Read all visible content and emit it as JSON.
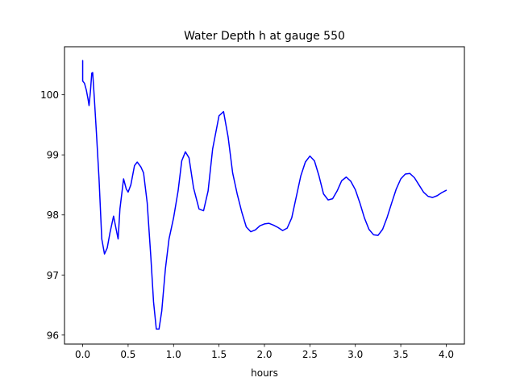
{
  "chart_data": {
    "type": "line",
    "title": "Water Depth h at gauge 550",
    "xlabel": "hours",
    "ylabel": "",
    "xlim": [
      -0.2,
      4.2
    ],
    "ylim": [
      95.85,
      100.8
    ],
    "xticks": [
      0.0,
      0.5,
      1.0,
      1.5,
      2.0,
      2.5,
      3.0,
      3.5,
      4.0
    ],
    "xtick_labels": [
      "0.0",
      "0.5",
      "1.0",
      "1.5",
      "2.0",
      "2.5",
      "3.0",
      "3.5",
      "4.0"
    ],
    "yticks": [
      96,
      97,
      98,
      99,
      100
    ],
    "ytick_labels": [
      "96",
      "97",
      "98",
      "99",
      "100"
    ],
    "grid": false,
    "series": [
      {
        "name": "",
        "color": "#0000ff",
        "points": [
          [
            0.0,
            100.57
          ],
          [
            0.0,
            100.23
          ],
          [
            0.02,
            100.19
          ],
          [
            0.04,
            100.08
          ],
          [
            0.06,
            99.92
          ],
          [
            0.07,
            99.82
          ],
          [
            0.085,
            100.05
          ],
          [
            0.1,
            100.36
          ],
          [
            0.11,
            100.37
          ],
          [
            0.13,
            99.9
          ],
          [
            0.15,
            99.4
          ],
          [
            0.18,
            98.6
          ],
          [
            0.21,
            97.6
          ],
          [
            0.24,
            97.35
          ],
          [
            0.27,
            97.45
          ],
          [
            0.3,
            97.7
          ],
          [
            0.34,
            97.98
          ],
          [
            0.37,
            97.75
          ],
          [
            0.39,
            97.6
          ],
          [
            0.41,
            98.1
          ],
          [
            0.45,
            98.6
          ],
          [
            0.48,
            98.43
          ],
          [
            0.5,
            98.38
          ],
          [
            0.53,
            98.5
          ],
          [
            0.57,
            98.82
          ],
          [
            0.6,
            98.88
          ],
          [
            0.64,
            98.8
          ],
          [
            0.67,
            98.7
          ],
          [
            0.71,
            98.2
          ],
          [
            0.75,
            97.3
          ],
          [
            0.78,
            96.55
          ],
          [
            0.81,
            96.1
          ],
          [
            0.84,
            96.1
          ],
          [
            0.87,
            96.4
          ],
          [
            0.91,
            97.1
          ],
          [
            0.95,
            97.6
          ],
          [
            1.0,
            97.95
          ],
          [
            1.05,
            98.4
          ],
          [
            1.09,
            98.9
          ],
          [
            1.13,
            99.05
          ],
          [
            1.17,
            98.95
          ],
          [
            1.22,
            98.45
          ],
          [
            1.28,
            98.1
          ],
          [
            1.33,
            98.07
          ],
          [
            1.38,
            98.4
          ],
          [
            1.43,
            99.1
          ],
          [
            1.5,
            99.65
          ],
          [
            1.55,
            99.72
          ],
          [
            1.6,
            99.3
          ],
          [
            1.65,
            98.7
          ],
          [
            1.7,
            98.35
          ],
          [
            1.75,
            98.05
          ],
          [
            1.8,
            97.8
          ],
          [
            1.85,
            97.72
          ],
          [
            1.9,
            97.75
          ],
          [
            1.95,
            97.82
          ],
          [
            2.0,
            97.85
          ],
          [
            2.05,
            97.86
          ],
          [
            2.1,
            97.83
          ],
          [
            2.15,
            97.79
          ],
          [
            2.2,
            97.74
          ],
          [
            2.25,
            97.78
          ],
          [
            2.3,
            97.95
          ],
          [
            2.35,
            98.3
          ],
          [
            2.4,
            98.65
          ],
          [
            2.45,
            98.88
          ],
          [
            2.5,
            98.98
          ],
          [
            2.55,
            98.9
          ],
          [
            2.6,
            98.65
          ],
          [
            2.65,
            98.35
          ],
          [
            2.7,
            98.25
          ],
          [
            2.75,
            98.27
          ],
          [
            2.8,
            98.4
          ],
          [
            2.85,
            98.57
          ],
          [
            2.9,
            98.63
          ],
          [
            2.95,
            98.56
          ],
          [
            3.0,
            98.42
          ],
          [
            3.05,
            98.2
          ],
          [
            3.1,
            97.95
          ],
          [
            3.15,
            97.76
          ],
          [
            3.2,
            97.67
          ],
          [
            3.25,
            97.66
          ],
          [
            3.3,
            97.76
          ],
          [
            3.35,
            97.96
          ],
          [
            3.4,
            98.2
          ],
          [
            3.45,
            98.43
          ],
          [
            3.5,
            98.6
          ],
          [
            3.55,
            98.68
          ],
          [
            3.6,
            98.69
          ],
          [
            3.65,
            98.62
          ],
          [
            3.7,
            98.5
          ],
          [
            3.75,
            98.38
          ],
          [
            3.8,
            98.31
          ],
          [
            3.85,
            98.29
          ],
          [
            3.9,
            98.32
          ],
          [
            3.95,
            98.37
          ],
          [
            4.0,
            98.41
          ]
        ]
      }
    ]
  }
}
